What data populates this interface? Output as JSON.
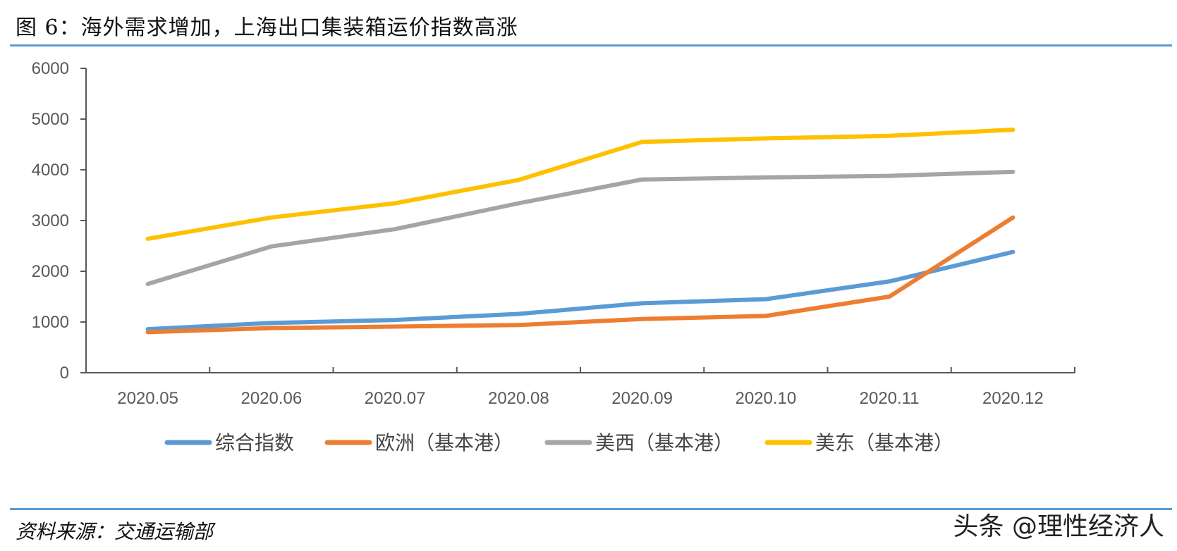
{
  "header": {
    "title": "图 6：海外需求增加，上海出口集装箱运价指数高涨"
  },
  "footer": {
    "source": "资料来源：交通运输部",
    "watermark": "头条 @理性经济人"
  },
  "colors": {
    "rule": "#5b9bd5",
    "axis": "#595959"
  },
  "chart_data": {
    "type": "line",
    "categories": [
      "2020.05",
      "2020.06",
      "2020.07",
      "2020.08",
      "2020.09",
      "2020.10",
      "2020.11",
      "2020.12"
    ],
    "ylim": [
      0,
      6000
    ],
    "yticks": [
      0,
      1000,
      2000,
      3000,
      4000,
      5000,
      6000
    ],
    "grid": false,
    "legend_position": "bottom",
    "series": [
      {
        "name": "综合指数",
        "color": "#5b9bd5",
        "values": [
          860,
          980,
          1040,
          1160,
          1370,
          1450,
          1800,
          2380
        ]
      },
      {
        "name": "欧洲（基本港）",
        "color": "#ed7d31",
        "values": [
          800,
          880,
          910,
          940,
          1060,
          1120,
          1500,
          3060
        ]
      },
      {
        "name": "美西（基本港）",
        "color": "#a5a5a5",
        "values": [
          1750,
          2490,
          2830,
          3340,
          3810,
          3850,
          3880,
          3960
        ]
      },
      {
        "name": "美东（基本港）",
        "color": "#ffc000",
        "values": [
          2640,
          3060,
          3340,
          3800,
          4550,
          4620,
          4670,
          4790
        ]
      }
    ]
  }
}
